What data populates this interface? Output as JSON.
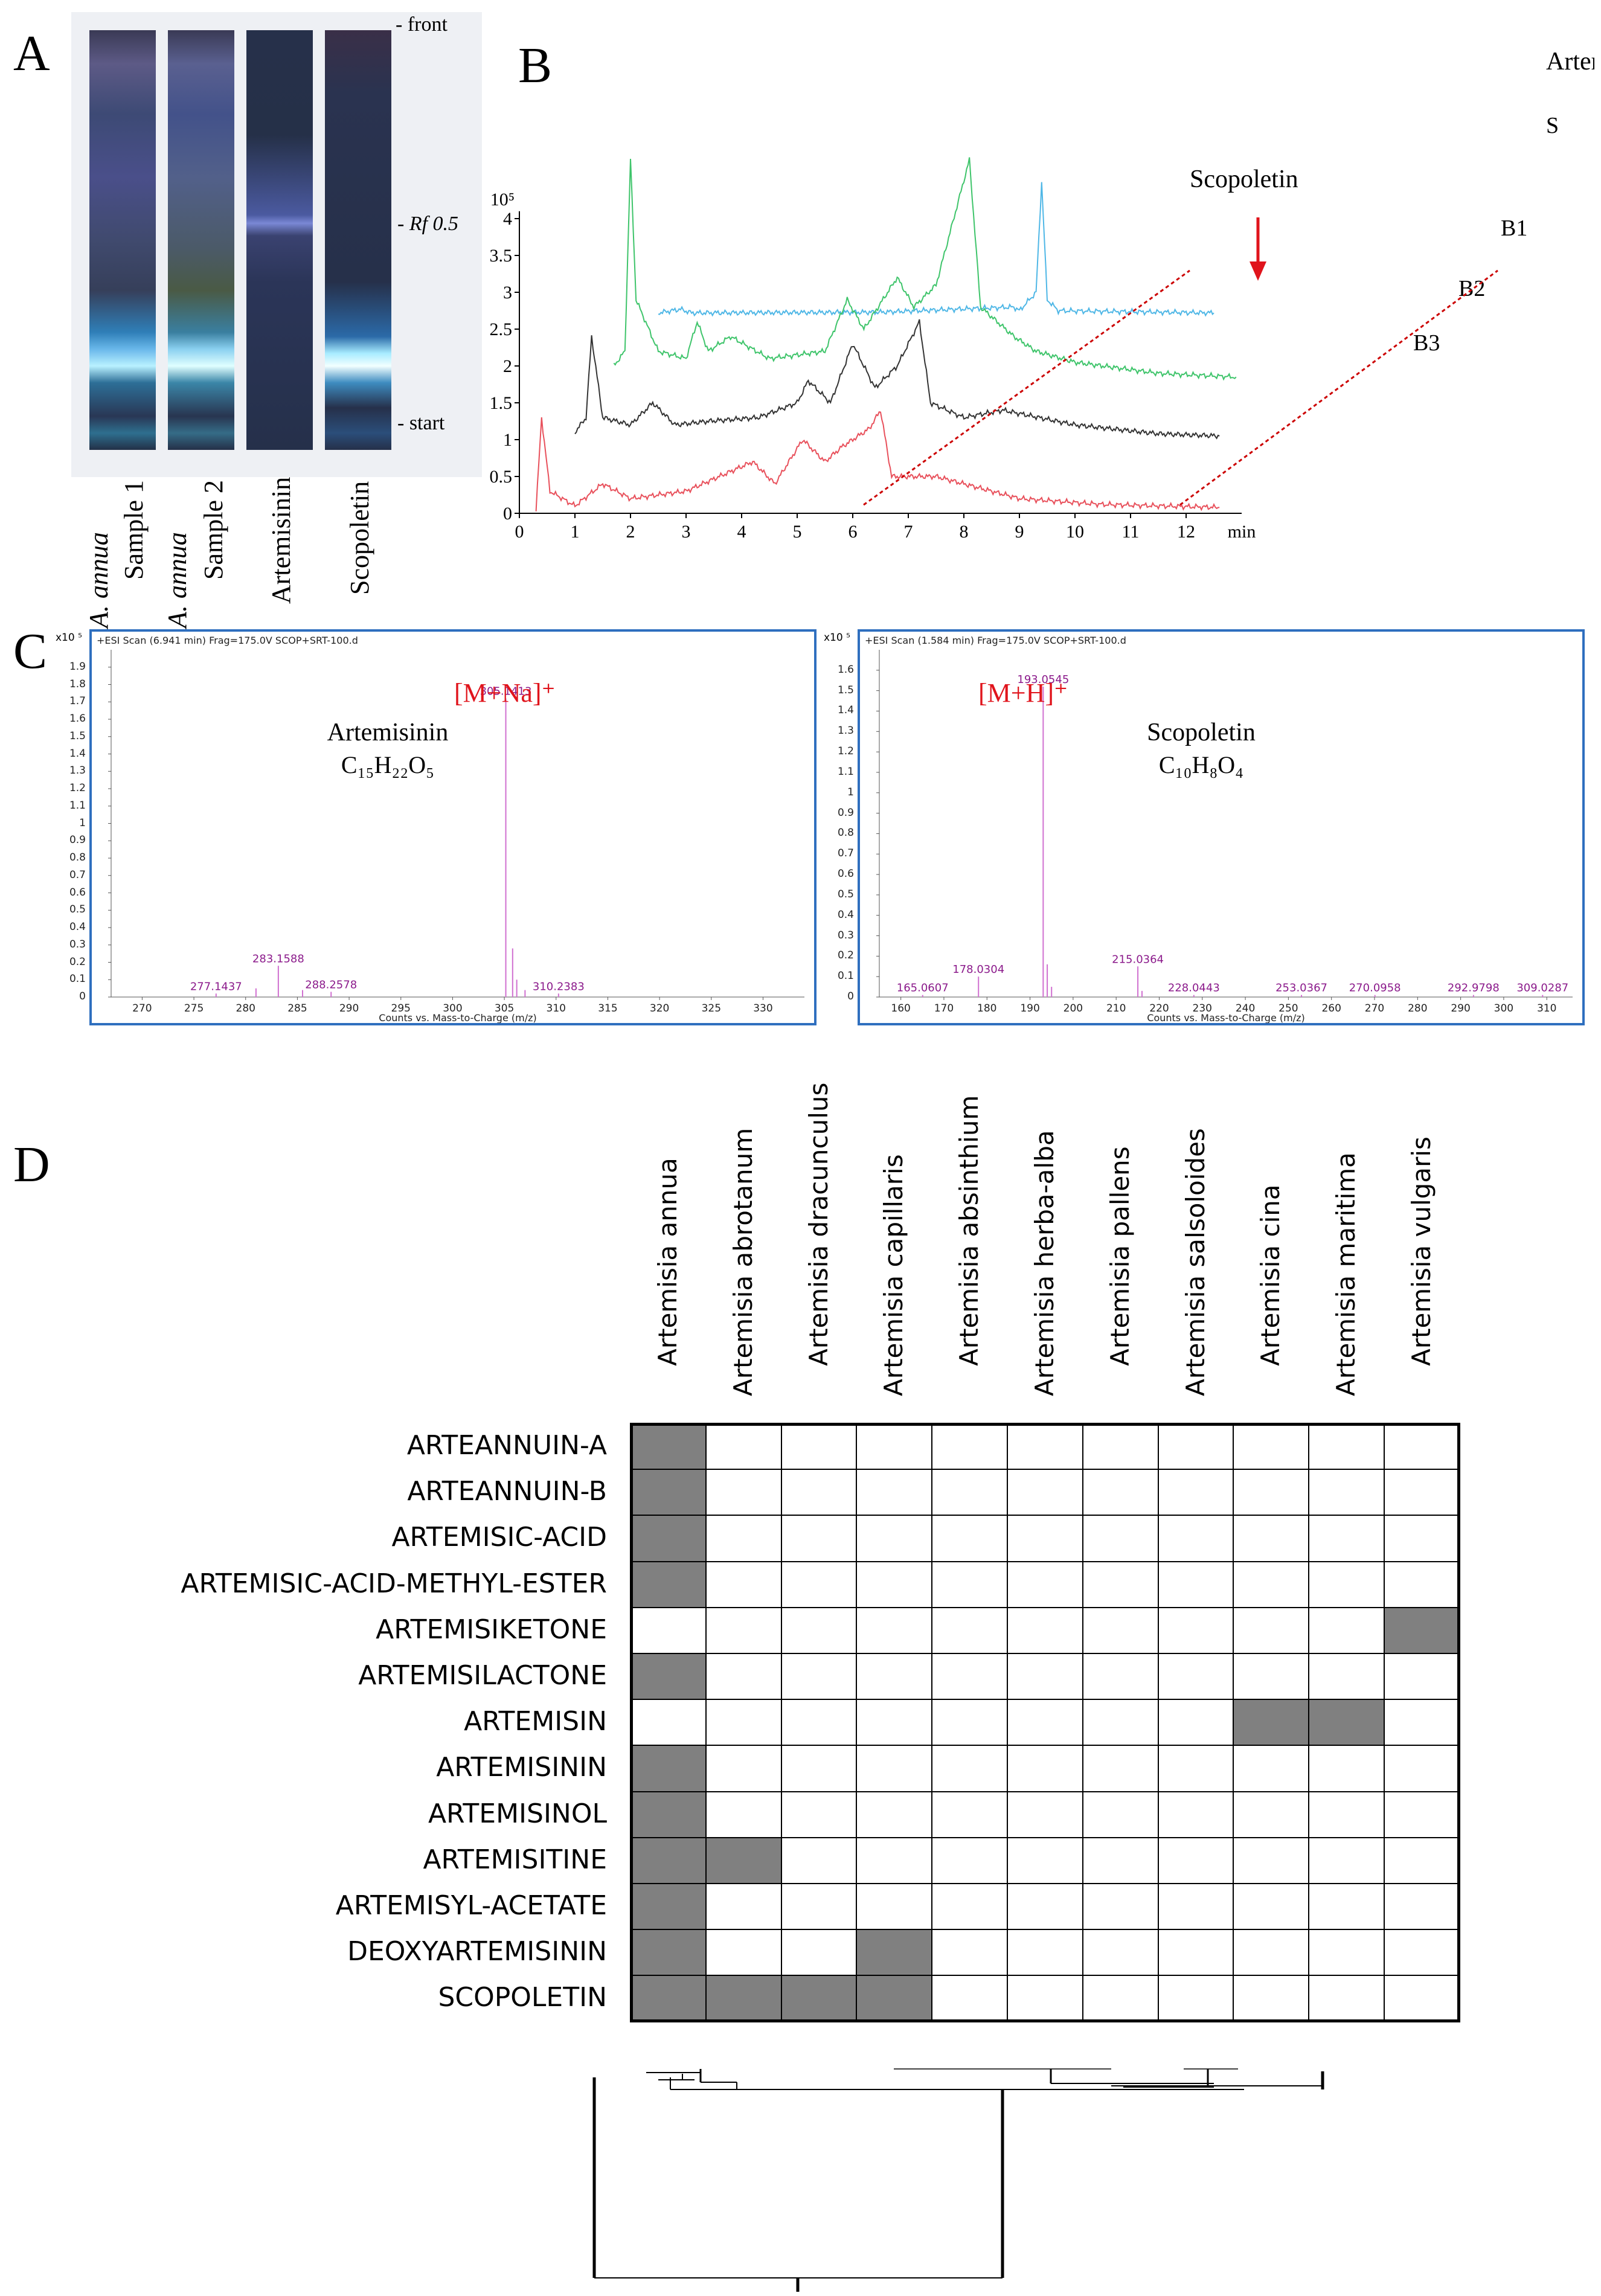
{
  "panels": {
    "a": "A",
    "b": "B",
    "c": "C",
    "d": "D"
  },
  "tlc": {
    "markers": [
      "- front",
      "- Rf 0.5",
      "- start"
    ],
    "lane_labels": [
      {
        "italic": "A. annua",
        "plain": "Sample 1"
      },
      {
        "italic": "A. annua",
        "plain": "Sample 2"
      },
      {
        "italic": "",
        "plain": "Artemisinin"
      },
      {
        "italic": "",
        "plain": "Scopoletin"
      }
    ]
  },
  "chromatogram": {
    "y_exponent": "10⁵",
    "y_ticks": [
      "0",
      "0.5",
      "1",
      "1.5",
      "2",
      "2.5",
      "3",
      "3.5",
      "4"
    ],
    "x_ticks": [
      "0",
      "1",
      "2",
      "3",
      "4",
      "5",
      "6",
      "7",
      "8",
      "9",
      "10",
      "11",
      "12",
      "min"
    ],
    "trace_labels": [
      "S",
      "B1",
      "B2",
      "B3"
    ],
    "annotations": [
      "Scopoletin",
      "Artemisinin"
    ],
    "colors": {
      "S": "#4fb7e6",
      "B1": "#3ec46a",
      "B2": "#333333",
      "B3": "#e8505b",
      "arrow": "#e0141c"
    }
  },
  "ms_left": {
    "header": "+ESI Scan (6.941 min) Frag=175.0V SCOP+SRT-100.d",
    "y_unit": "x10 ⁵",
    "y_ticks": [
      "0",
      "0.1",
      "0.2",
      "0.3",
      "0.4",
      "0.5",
      "0.6",
      "0.7",
      "0.8",
      "0.9",
      "1",
      "1.1",
      "1.2",
      "1.3",
      "1.4",
      "1.5",
      "1.6",
      "1.7",
      "1.8",
      "1.9"
    ],
    "x_ticks": [
      "270",
      "275",
      "280",
      "285",
      "290",
      "295",
      "300",
      "305",
      "310",
      "315",
      "320",
      "325",
      "330"
    ],
    "x_label": "Counts vs. Mass-to-Charge (m/z)",
    "ion": "[M+Na]⁺",
    "compound": "Artemisinin",
    "formula": "C₁₅H₂₂O₅",
    "peak_labels": [
      "277.1437",
      "283.1588",
      "288.2578",
      "305.1413",
      "310.2383"
    ]
  },
  "ms_right": {
    "header": "+ESI Scan (1.584 min) Frag=175.0V SCOP+SRT-100.d",
    "y_unit": "x10 ⁵",
    "y_ticks": [
      "0",
      "0.1",
      "0.2",
      "0.3",
      "0.4",
      "0.5",
      "0.6",
      "0.7",
      "0.8",
      "0.9",
      "1",
      "1.1",
      "1.2",
      "1.3",
      "1.4",
      "1.5",
      "1.6"
    ],
    "x_ticks": [
      "160",
      "170",
      "180",
      "190",
      "200",
      "210",
      "220",
      "230",
      "240",
      "250",
      "260",
      "270",
      "280",
      "290",
      "300",
      "310"
    ],
    "x_label": "Counts vs. Mass-to-Charge (m/z)",
    "ion": "[M+H]⁺",
    "compound": "Scopoletin",
    "formula": "C₁₀H₈O₄",
    "peak_labels": [
      "165.0607",
      "178.0304",
      "193.0545",
      "215.0364",
      "228.0443",
      "253.0367",
      "270.0958",
      "292.9798",
      "309.0287"
    ]
  },
  "chart_data": [
    {
      "type": "line",
      "x_unit": "min",
      "y_unit": "10⁵",
      "ylim": [
        0,
        4.1
      ],
      "xlim": [
        0,
        13
      ],
      "series": [
        {
          "name": "S",
          "points": [
            [
              2.5,
              2.72
            ],
            [
              2.9,
              2.77
            ],
            [
              3.1,
              2.72
            ],
            [
              6.5,
              2.73
            ],
            [
              8.9,
              2.8
            ],
            [
              9.0,
              2.75
            ],
            [
              9.3,
              3.0
            ],
            [
              9.4,
              4.5
            ],
            [
              9.5,
              2.9
            ],
            [
              9.7,
              2.75
            ],
            [
              12.5,
              2.72
            ]
          ]
        },
        {
          "name": "B1",
          "points": [
            [
              1.7,
              2.0
            ],
            [
              1.9,
              2.2
            ],
            [
              2.0,
              4.8
            ],
            [
              2.1,
              2.9
            ],
            [
              2.5,
              2.2
            ],
            [
              3.0,
              2.1
            ],
            [
              3.2,
              2.6
            ],
            [
              3.4,
              2.2
            ],
            [
              3.8,
              2.4
            ],
            [
              4.5,
              2.1
            ],
            [
              5.5,
              2.2
            ],
            [
              5.9,
              2.9
            ],
            [
              6.2,
              2.5
            ],
            [
              6.8,
              3.2
            ],
            [
              7.1,
              2.8
            ],
            [
              7.5,
              3.1
            ],
            [
              8.1,
              4.8
            ],
            [
              8.3,
              2.8
            ],
            [
              8.9,
              2.4
            ],
            [
              9.3,
              2.2
            ],
            [
              10.0,
              2.05
            ],
            [
              11.5,
              1.9
            ],
            [
              12.9,
              1.85
            ]
          ]
        },
        {
          "name": "B2",
          "points": [
            [
              1.0,
              1.1
            ],
            [
              1.2,
              1.3
            ],
            [
              1.3,
              2.4
            ],
            [
              1.5,
              1.3
            ],
            [
              2.0,
              1.2
            ],
            [
              2.4,
              1.5
            ],
            [
              2.8,
              1.2
            ],
            [
              3.4,
              1.25
            ],
            [
              4.3,
              1.3
            ],
            [
              5.0,
              1.5
            ],
            [
              5.2,
              1.8
            ],
            [
              5.6,
              1.5
            ],
            [
              6.0,
              2.3
            ],
            [
              6.4,
              1.7
            ],
            [
              6.8,
              2.0
            ],
            [
              7.2,
              2.6
            ],
            [
              7.4,
              1.5
            ],
            [
              8.0,
              1.3
            ],
            [
              8.7,
              1.4
            ],
            [
              10.0,
              1.2
            ],
            [
              11.5,
              1.08
            ],
            [
              12.6,
              1.05
            ]
          ]
        },
        {
          "name": "B3",
          "points": [
            [
              0.3,
              0.05
            ],
            [
              0.4,
              1.3
            ],
            [
              0.55,
              0.3
            ],
            [
              1.0,
              0.1
            ],
            [
              1.5,
              0.4
            ],
            [
              2.0,
              0.2
            ],
            [
              3.0,
              0.3
            ],
            [
              4.2,
              0.7
            ],
            [
              4.6,
              0.4
            ],
            [
              5.1,
              1.0
            ],
            [
              5.5,
              0.7
            ],
            [
              5.8,
              0.9
            ],
            [
              6.3,
              1.15
            ],
            [
              6.5,
              1.4
            ],
            [
              6.7,
              0.5
            ],
            [
              7.5,
              0.5
            ],
            [
              8.0,
              0.4
            ],
            [
              9.0,
              0.2
            ],
            [
              10.5,
              0.12
            ],
            [
              12.6,
              0.08
            ]
          ]
        }
      ]
    },
    {
      "type": "bar",
      "title": "Artemisinin",
      "xlabel": "Counts vs. Mass-to-Charge (m/z)",
      "xlim": [
        267,
        334
      ],
      "ylim": [
        0,
        2.0
      ],
      "x": [
        277.1437,
        281.0,
        283.1588,
        285.5,
        288.2578,
        305.1413,
        305.8,
        306.2,
        307.0,
        310.2383
      ],
      "values": [
        0.02,
        0.05,
        0.18,
        0.04,
        0.03,
        1.72,
        0.28,
        0.1,
        0.04,
        0.02
      ]
    },
    {
      "type": "bar",
      "title": "Scopoletin",
      "xlabel": "Counts vs. Mass-to-Charge (m/z)",
      "xlim": [
        155,
        316
      ],
      "ylim": [
        0,
        1.7
      ],
      "x": [
        165.0607,
        178.0304,
        193.0545,
        194.0,
        195.0,
        215.0364,
        216.0,
        228.0443,
        253.0367,
        270.0958,
        292.9798,
        309.0287
      ],
      "values": [
        0.01,
        0.1,
        1.52,
        0.16,
        0.05,
        0.15,
        0.03,
        0.01,
        0.01,
        0.01,
        0.01,
        0.01
      ]
    },
    {
      "type": "heatmap",
      "columns": [
        "Artemisia annua",
        "Artemisia abrotanum",
        "Artemisia dracunculus",
        "Artemisia capillaris",
        "Artemisia absinthium",
        "Artemisia herba-alba",
        "Artemisia pallens",
        "Artemisia salsoloides",
        "Artemisia cina",
        "Artemisia maritima",
        "Artemisia vulgaris"
      ],
      "rows": [
        "ARTEANNUIN-A",
        "ARTEANNUIN-B",
        "ARTEMISIC-ACID",
        "ARTEMISIC-ACID-METHYL-ESTER",
        "ARTEMISIKETONE",
        "ARTEMISILACTONE",
        "ARTEMISIN",
        "ARTEMISININ",
        "ARTEMISINOL",
        "ARTEMISITINE",
        "ARTEMISYL-ACETATE",
        "DEOXYARTEMISININ",
        "SCOPOLETIN"
      ],
      "values": [
        [
          1,
          0,
          0,
          0,
          0,
          0,
          0,
          0,
          0,
          0,
          0
        ],
        [
          1,
          0,
          0,
          0,
          0,
          0,
          0,
          0,
          0,
          0,
          0
        ],
        [
          1,
          0,
          0,
          0,
          0,
          0,
          0,
          0,
          0,
          0,
          0
        ],
        [
          1,
          0,
          0,
          0,
          0,
          0,
          0,
          0,
          0,
          0,
          0
        ],
        [
          0,
          0,
          0,
          0,
          0,
          0,
          0,
          0,
          0,
          0,
          1
        ],
        [
          1,
          0,
          0,
          0,
          0,
          0,
          0,
          0,
          0,
          0,
          0
        ],
        [
          0,
          0,
          0,
          0,
          0,
          0,
          0,
          0,
          1,
          1,
          0
        ],
        [
          1,
          0,
          0,
          0,
          0,
          0,
          0,
          0,
          0,
          0,
          0
        ],
        [
          1,
          0,
          0,
          0,
          0,
          0,
          0,
          0,
          0,
          0,
          0
        ],
        [
          1,
          1,
          0,
          0,
          0,
          0,
          0,
          0,
          0,
          0,
          0
        ],
        [
          1,
          0,
          0,
          0,
          0,
          0,
          0,
          0,
          0,
          0,
          0
        ],
        [
          1,
          0,
          0,
          1,
          0,
          0,
          0,
          0,
          0,
          0,
          0
        ],
        [
          1,
          1,
          1,
          1,
          0,
          0,
          0,
          0,
          0,
          0,
          0
        ]
      ],
      "colors": {
        "present": "#808080",
        "absent": "#ffffff"
      }
    }
  ]
}
